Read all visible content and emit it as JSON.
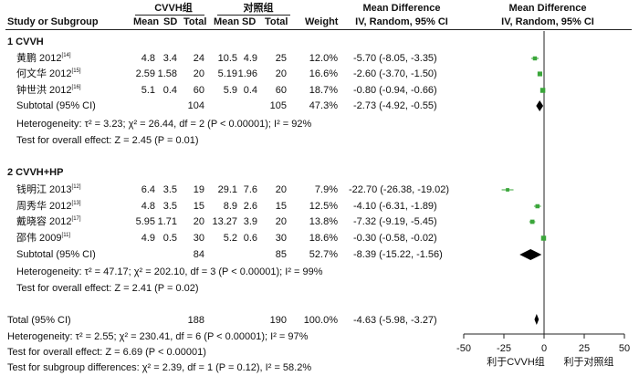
{
  "header": {
    "study": "Study or Subgroup",
    "group1": "CVVH组",
    "group2": "对照组",
    "md1": "Mean Difference",
    "md2": "Mean Difference",
    "mean": "Mean",
    "sd": "SD",
    "total": "Total",
    "weight": "Weight",
    "method1": "IV, Random, 95% CI",
    "method2": "IV, Random, 95% CI"
  },
  "subgroups": [
    {
      "title": "1 CVVH",
      "studies": [
        {
          "name": "黄鹏 2012",
          "ref": "[14]",
          "m1": "4.8",
          "sd1": "3.4",
          "n1": "24",
          "m2": "10.5",
          "sd2": "4.9",
          "n2": "25",
          "weight": "12.0%",
          "ci": "-5.70 (-8.05, -3.35)",
          "md": -5.7,
          "lo": -8.05,
          "hi": -3.35
        },
        {
          "name": "何文华 2012",
          "ref": "[15]",
          "m1": "2.59",
          "sd1": "1.58",
          "n1": "20",
          "m2": "5.19",
          "sd2": "1.96",
          "n2": "20",
          "weight": "16.6%",
          "ci": "-2.60 (-3.70, -1.50)",
          "md": -2.6,
          "lo": -3.7,
          "hi": -1.5
        },
        {
          "name": "钟世洪 2012",
          "ref": "[16]",
          "m1": "5.1",
          "sd1": "0.4",
          "n1": "60",
          "m2": "5.9",
          "sd2": "0.4",
          "n2": "60",
          "weight": "18.7%",
          "ci": "-0.80 (-0.94, -0.66)",
          "md": -0.8,
          "lo": -0.94,
          "hi": -0.66
        }
      ],
      "subtotal": {
        "label": "Subtotal (95% CI)",
        "n1": "104",
        "n2": "105",
        "weight": "47.3%",
        "ci": "-2.73 (-4.92, -0.55)",
        "md": -2.73,
        "lo": -4.92,
        "hi": -0.55
      },
      "heterogeneity": "Heterogeneity: τ² = 3.23;  χ² = 26.44, df = 2 (P < 0.00001); I² = 92%",
      "overall": "Test for overall effect: Z = 2.45 (P = 0.01)"
    },
    {
      "title": "2 CVVH+HP",
      "studies": [
        {
          "name": "钱明江 2013",
          "ref": "[12]",
          "m1": "6.4",
          "sd1": "3.5",
          "n1": "19",
          "m2": "29.1",
          "sd2": "7.6",
          "n2": "20",
          "weight": "7.9%",
          "ci": "-22.70 (-26.38, -19.02)",
          "md": -22.7,
          "lo": -26.38,
          "hi": -19.02
        },
        {
          "name": "周秀华 2012",
          "ref": "[13]",
          "m1": "4.8",
          "sd1": "3.5",
          "n1": "15",
          "m2": "8.9",
          "sd2": "2.6",
          "n2": "15",
          "weight": "12.5%",
          "ci": "-4.10 (-6.31, -1.89)",
          "md": -4.1,
          "lo": -6.31,
          "hi": -1.89
        },
        {
          "name": "戴晓容 2012",
          "ref": "[17]",
          "m1": "5.95",
          "sd1": "1.71",
          "n1": "20",
          "m2": "13.27",
          "sd2": "3.9",
          "n2": "20",
          "weight": "13.8%",
          "ci": "-7.32 (-9.19, -5.45)",
          "md": -7.32,
          "lo": -9.19,
          "hi": -5.45
        },
        {
          "name": "邵伟 2009",
          "ref": "[11]",
          "m1": "4.9",
          "sd1": "0.5",
          "n1": "30",
          "m2": "5.2",
          "sd2": "0.6",
          "n2": "30",
          "weight": "18.6%",
          "ci": "-0.30 (-0.58, -0.02)",
          "md": -0.3,
          "lo": -0.58,
          "hi": -0.02
        }
      ],
      "subtotal": {
        "label": "Subtotal (95% CI)",
        "n1": "84",
        "n2": "85",
        "weight": "52.7%",
        "ci": "-8.39 (-15.22, -1.56)",
        "md": -8.39,
        "lo": -15.22,
        "hi": -1.56
      },
      "heterogeneity": "Heterogeneity: τ² = 47.17;  χ² = 202.10, df = 3 (P < 0.00001); I² = 99%",
      "overall": "Test for overall effect: Z = 2.41 (P = 0.02)"
    }
  ],
  "total": {
    "label": "Total (95% CI)",
    "n1": "188",
    "n2": "190",
    "weight": "100.0%",
    "ci": "-4.63 (-5.98, -3.27)",
    "md": -4.63,
    "lo": -5.98,
    "hi": -3.27
  },
  "footer": {
    "heterogeneity": "Heterogeneity: τ² = 2.55;  χ² = 230.41, df = 6 (P < 0.00001); I² = 97%",
    "overall": "Test for overall effect: Z = 6.69 (P < 0.00001)",
    "subgroup": "Test for subgroup differences: χ² = 2.39, df = 1 (P = 0.12), I² = 58.2%"
  },
  "axis": {
    "ticks": [
      "-50",
      "-25",
      "0",
      "25",
      "50"
    ],
    "favours_left": "利于CVVH组",
    "favours_right": "利于对照组"
  },
  "chart_data": {
    "type": "forest",
    "xlim": [
      -50,
      50
    ],
    "xticks": [
      -50,
      -25,
      0,
      25,
      50
    ],
    "reference_line": 0,
    "colors": {
      "study_square": "#3aa63a",
      "ci_line": "#3aa63a",
      "diamond": "#000000"
    }
  }
}
